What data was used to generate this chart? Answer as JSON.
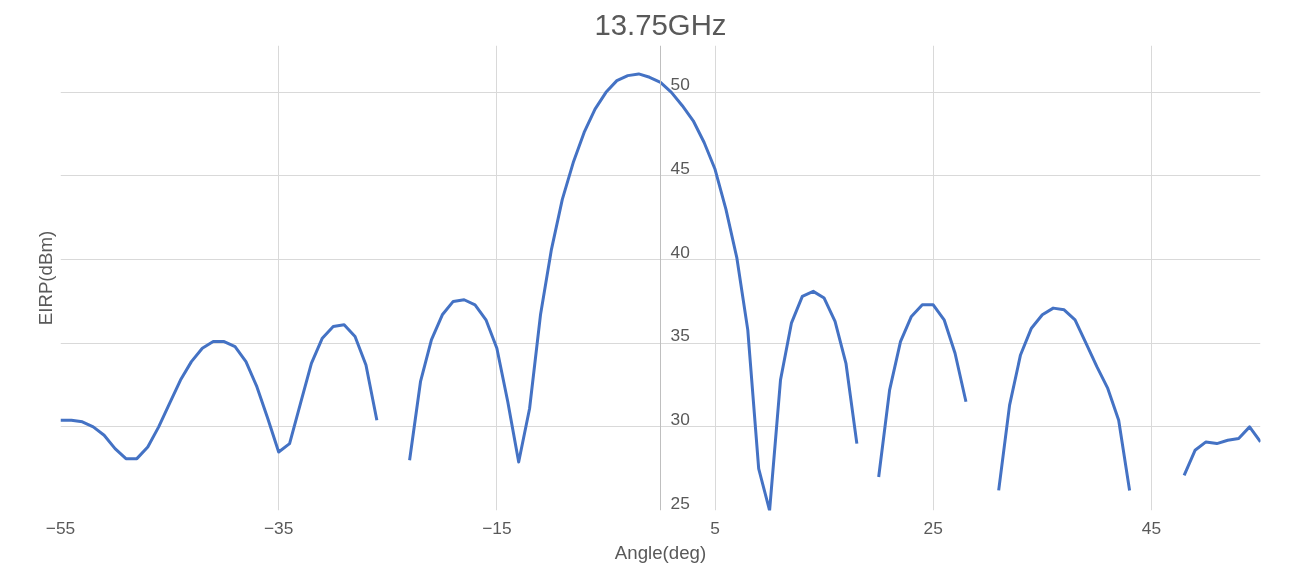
{
  "chart_data": {
    "type": "line",
    "title": "13.75GHz",
    "xlabel": "Angle(deg)",
    "ylabel": "EIRP(dBm)",
    "x": [
      -55,
      -54,
      -53,
      -52,
      -51,
      -50,
      -49,
      -48,
      -47,
      -46,
      -45,
      -44,
      -43,
      -42,
      -41,
      -40,
      -39,
      -38,
      -37,
      -36,
      -35,
      -34,
      -33,
      -32,
      -31,
      -30,
      -29,
      -28,
      -27,
      -26,
      -25,
      -24,
      -23,
      -22,
      -21,
      -20,
      -19,
      -18,
      -17,
      -16,
      -15,
      -14,
      -13,
      -12,
      -11,
      -10,
      -9,
      -8,
      -7,
      -6,
      -5,
      -4,
      -3,
      -2,
      -1,
      0,
      1,
      2,
      3,
      4,
      5,
      6,
      7,
      8,
      9,
      10,
      11,
      12,
      13,
      14,
      15,
      16,
      17,
      18,
      19,
      20,
      21,
      22,
      23,
      24,
      25,
      26,
      27,
      28,
      29,
      30,
      31,
      32,
      33,
      34,
      35,
      36,
      37,
      38,
      39,
      40,
      41,
      42,
      43,
      44,
      45,
      46,
      47,
      48,
      49,
      50,
      51,
      52,
      53,
      54,
      55
    ],
    "series": [
      {
        "color": "#4472c4",
        "values": [
          30.4,
          30.4,
          30.3,
          30.0,
          29.5,
          28.7,
          28.1,
          28.1,
          28.8,
          30.0,
          31.4,
          32.8,
          33.9,
          34.7,
          35.1,
          35.1,
          34.8,
          33.9,
          32.4,
          30.5,
          28.5,
          29.0,
          31.4,
          33.8,
          35.3,
          36.0,
          36.1,
          35.4,
          33.7,
          30.4,
          null,
          null,
          28.0,
          32.7,
          35.2,
          36.7,
          37.5,
          37.6,
          37.3,
          36.4,
          34.7,
          31.5,
          27.9,
          31.1,
          36.7,
          40.6,
          43.6,
          45.8,
          47.6,
          49.0,
          50.0,
          50.7,
          51.0,
          51.1,
          50.9,
          50.6,
          50.0,
          49.2,
          48.3,
          47.0,
          45.4,
          43.0,
          40.1,
          35.8,
          27.5,
          25.0,
          32.8,
          36.2,
          37.8,
          38.1,
          37.7,
          36.3,
          33.8,
          29.0,
          null,
          27.0,
          32.2,
          35.1,
          36.6,
          37.3,
          37.3,
          36.4,
          34.4,
          31.5,
          null,
          null,
          26.2,
          31.3,
          34.3,
          35.9,
          36.7,
          37.1,
          37.0,
          36.4,
          35.0,
          33.6,
          32.3,
          30.4,
          26.2,
          null,
          null,
          null,
          null,
          27.1,
          28.6,
          29.1,
          29.0,
          29.2,
          29.3,
          30.0,
          29.1
        ]
      }
    ],
    "xlim": [
      -55,
      55
    ],
    "ylim": [
      25,
      52.8
    ],
    "xticks": [
      -55,
      -35,
      -15,
      5,
      25,
      45
    ],
    "yticks": [
      25,
      30,
      35,
      40,
      45,
      50
    ],
    "grid": true,
    "legend": false,
    "marker": "none",
    "line_style": "solid"
  }
}
